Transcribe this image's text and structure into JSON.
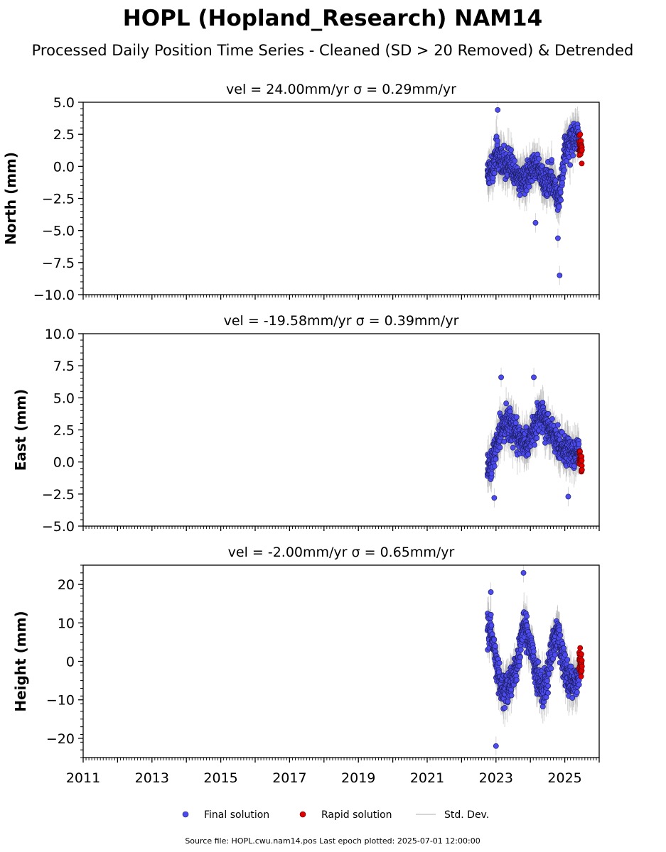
{
  "title": "HOPL (Hopland_Research) NAM14",
  "subtitle": "Processed Daily Position Time Series - Cleaned (SD > 20 Removed) & Detrended",
  "legend": {
    "final": "Final solution",
    "rapid": "Rapid solution",
    "std": "Std. Dev."
  },
  "footer": "Source file: HOPL.cwu.nam14.pos  Last epoch plotted: 2025-07-01 12:00:00",
  "colors": {
    "final": "#4b4bf0",
    "rapid": "#e00000",
    "std": "#b4b4b4"
  },
  "chart_data": [
    {
      "type": "scatter",
      "title": "vel = 24.00mm/yr   σ = 0.29mm/yr",
      "ylabel": "North (mm)",
      "xlim": [
        2011,
        2026
      ],
      "ylim": [
        -10,
        5
      ],
      "yticks": [
        5.0,
        2.5,
        0.0,
        -2.5,
        -5.0,
        -7.5,
        -10.0
      ],
      "ytick_labels": [
        "5.0",
        "2.5",
        "0.0",
        "−2.5",
        "−5.0",
        "−7.5",
        "−10.0"
      ],
      "final_range": [
        "2022-10",
        "2025-06"
      ],
      "rapid_range": [
        "2025-06",
        "2025-07-01"
      ],
      "series": [
        {
          "name": "Final solution",
          "x": [
            2022.9,
            2023.0,
            2023.1,
            2023.2,
            2023.4,
            2023.6,
            2023.8,
            2024.0,
            2024.2,
            2024.4,
            2024.6,
            2024.8,
            2024.9,
            2025.0,
            2025.2,
            2025.4
          ],
          "values": [
            -0.4,
            1.3,
            0.6,
            0.2,
            0.4,
            -0.6,
            -1.0,
            -0.5,
            0.1,
            -1.2,
            -0.8,
            -2.5,
            -1.5,
            1.2,
            2.0,
            2.3
          ]
        },
        {
          "name": "Rapid solution",
          "x": [
            2025.45,
            2025.5
          ],
          "values": [
            1.6,
            1.2
          ]
        }
      ],
      "outliers": [
        {
          "x": 2023.05,
          "y": 4.4
        },
        {
          "x": 2024.85,
          "y": -8.5
        },
        {
          "x": 2024.8,
          "y": -5.6
        },
        {
          "x": 2024.15,
          "y": -4.4
        }
      ]
    },
    {
      "type": "scatter",
      "title": "vel = -19.58mm/yr   σ = 0.39mm/yr",
      "ylabel": "East (mm)",
      "xlim": [
        2011,
        2026
      ],
      "ylim": [
        -5,
        10
      ],
      "yticks": [
        10.0,
        7.5,
        5.0,
        2.5,
        0.0,
        -2.5,
        -5.0
      ],
      "ytick_labels": [
        "10.0",
        "7.5",
        "5.0",
        "2.5",
        "0.0",
        "−2.5",
        "−5.0"
      ],
      "final_range": [
        "2022-10",
        "2025-06"
      ],
      "rapid_range": [
        "2025-06",
        "2025-07-01"
      ],
      "series": [
        {
          "name": "Final solution",
          "x": [
            2022.85,
            2022.95,
            2023.1,
            2023.3,
            2023.5,
            2023.7,
            2023.9,
            2024.1,
            2024.3,
            2024.5,
            2024.7,
            2024.9,
            2025.1,
            2025.3,
            2025.45
          ],
          "values": [
            -0.5,
            0.5,
            2.3,
            3.2,
            2.6,
            1.6,
            1.5,
            2.3,
            3.8,
            2.8,
            2.0,
            1.2,
            0.9,
            0.8,
            1.1
          ]
        },
        {
          "name": "Rapid solution",
          "x": [
            2025.45,
            2025.5
          ],
          "values": [
            0.3,
            -0.4
          ]
        }
      ],
      "outliers": [
        {
          "x": 2023.15,
          "y": 6.6
        },
        {
          "x": 2024.1,
          "y": 6.6
        },
        {
          "x": 2022.95,
          "y": -2.8
        },
        {
          "x": 2025.1,
          "y": -2.7
        }
      ]
    },
    {
      "type": "scatter",
      "title": "vel = -2.00mm/yr   σ = 0.65mm/yr",
      "ylabel": "Height (mm)",
      "xlim": [
        2011,
        2026
      ],
      "ylim": [
        -25,
        25
      ],
      "yticks": [
        20,
        10,
        0,
        -10,
        -20
      ],
      "ytick_labels": [
        "20",
        "10",
        "0",
        "−10",
        "−20"
      ],
      "xtick_labels": [
        "2011",
        "2013",
        "2015",
        "2017",
        "2019",
        "2021",
        "2023",
        "2025"
      ],
      "final_range": [
        "2022-10",
        "2025-06"
      ],
      "rapid_range": [
        "2025-06",
        "2025-07-01"
      ],
      "series": [
        {
          "name": "Final solution",
          "x": [
            2022.85,
            2023.0,
            2023.2,
            2023.4,
            2023.6,
            2023.8,
            2024.0,
            2024.2,
            2024.4,
            2024.6,
            2024.8,
            2025.0,
            2025.2,
            2025.4
          ],
          "values": [
            8,
            0,
            -8,
            -6,
            -2,
            10,
            4,
            -4,
            -8,
            2,
            8,
            -2,
            -6,
            -4
          ]
        },
        {
          "name": "Rapid solution",
          "x": [
            2025.45,
            2025.5
          ],
          "values": [
            0,
            -2
          ]
        }
      ],
      "outliers": [
        {
          "x": 2023.8,
          "y": 23
        },
        {
          "x": 2023.0,
          "y": -22
        },
        {
          "x": 2022.85,
          "y": 18
        }
      ]
    }
  ]
}
